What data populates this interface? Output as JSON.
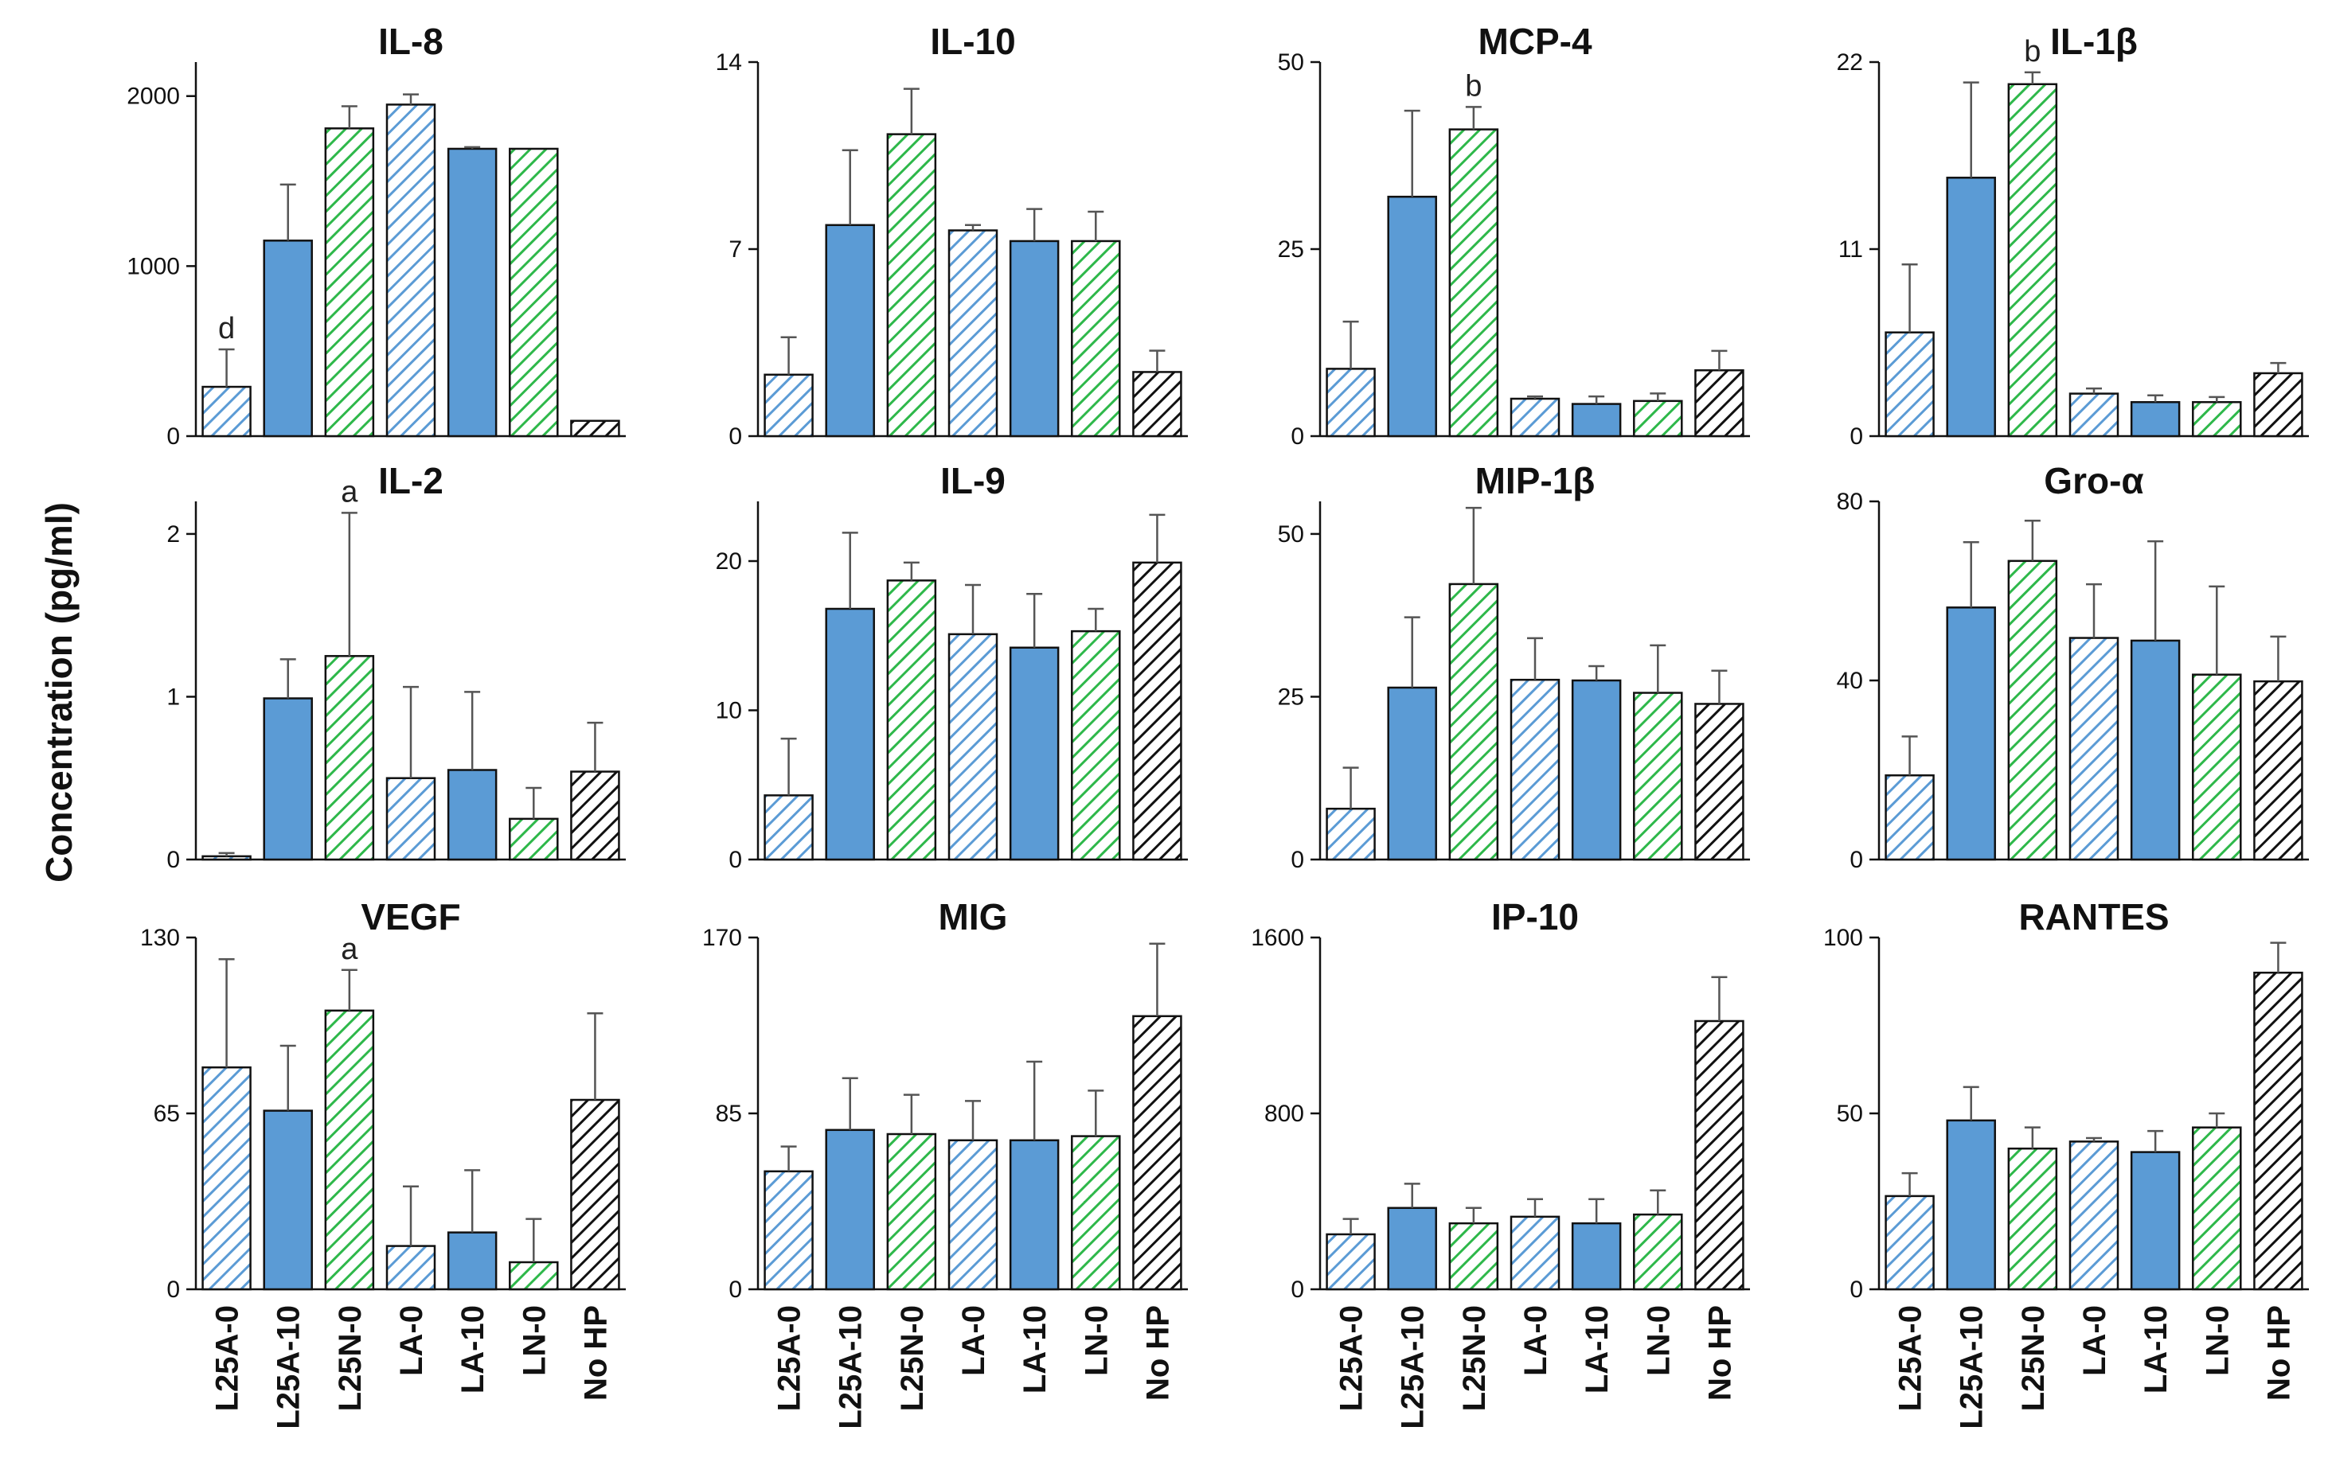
{
  "chart_data": {
    "type": "bar",
    "ylabel": "Concentration  (pg/ml)",
    "categories": [
      "L25A-0",
      "L25A-10",
      "L25N-0",
      "LA-0",
      "LA-10",
      "LN-0",
      "No HP"
    ],
    "category_styles": [
      "hatch-blue",
      "solid-blue",
      "hatch-green",
      "hatch-blue",
      "solid-blue",
      "hatch-green",
      "hatch-black"
    ],
    "colors": {
      "blue": "#5B9BD5",
      "green": "#2EB84A",
      "black": "#111111",
      "blue_hatch": "#5B9BD5"
    },
    "panels": [
      {
        "title": "IL-8",
        "ylim": [
          0,
          2200
        ],
        "ticks": [
          "0",
          "1000",
          "2000"
        ],
        "tick_values": [
          0,
          1000,
          2000
        ],
        "values": [
          290,
          1150,
          1810,
          1950,
          1690,
          1690,
          90
        ],
        "errors": [
          220,
          330,
          130,
          60,
          10,
          0,
          0
        ],
        "annotations": [
          {
            "index": 0,
            "label": "d"
          }
        ]
      },
      {
        "title": "IL-10",
        "ylim": [
          0,
          14
        ],
        "ticks": [
          "0",
          "7",
          "14"
        ],
        "tick_values": [
          0,
          7,
          14
        ],
        "values": [
          2.3,
          7.9,
          11.3,
          7.7,
          7.3,
          7.3,
          2.4
        ],
        "errors": [
          1.4,
          2.8,
          1.7,
          0.2,
          1.2,
          1.1,
          0.8
        ],
        "annotations": []
      },
      {
        "title": "MCP-4",
        "ylim": [
          0,
          50
        ],
        "ticks": [
          "0",
          "25",
          "50"
        ],
        "tick_values": [
          0,
          25,
          50
        ],
        "values": [
          9,
          32,
          41,
          5,
          4.3,
          4.7,
          8.8
        ],
        "errors": [
          6.3,
          11.5,
          3,
          0.3,
          1,
          1,
          2.6
        ],
        "annotations": [
          {
            "index": 2,
            "label": "b"
          }
        ]
      },
      {
        "title": "IL-1β",
        "ylim": [
          0,
          22
        ],
        "ticks": [
          "0",
          "11",
          "22"
        ],
        "tick_values": [
          0,
          11,
          22
        ],
        "values": [
          6.1,
          15.2,
          20.7,
          2.5,
          2,
          2,
          3.7
        ],
        "errors": [
          4,
          5.6,
          0.7,
          0.3,
          0.4,
          0.3,
          0.6
        ],
        "annotations": [
          {
            "index": 2,
            "label": "b"
          }
        ]
      },
      {
        "title": "IL-2",
        "ylim": [
          0,
          2.2
        ],
        "ticks": [
          "0",
          "1",
          "2"
        ],
        "tick_values": [
          0,
          1,
          2
        ],
        "values": [
          0.02,
          0.99,
          1.25,
          0.5,
          0.55,
          0.25,
          0.54
        ],
        "errors": [
          0.02,
          0.24,
          0.88,
          0.56,
          0.48,
          0.19,
          0.3
        ],
        "annotations": [
          {
            "index": 2,
            "label": "a"
          }
        ]
      },
      {
        "title": "IL-9",
        "ylim": [
          0,
          24
        ],
        "ticks": [
          "0",
          "10",
          "20"
        ],
        "tick_values": [
          0,
          10,
          20
        ],
        "values": [
          4.3,
          16.8,
          18.7,
          15.1,
          14.2,
          15.3,
          19.9
        ],
        "errors": [
          3.8,
          5.1,
          1.2,
          3.3,
          3.6,
          1.5,
          3.2
        ],
        "annotations": []
      },
      {
        "title": "MIP-1β",
        "ylim": [
          0,
          55
        ],
        "ticks": [
          "0",
          "25",
          "50"
        ],
        "tick_values": [
          0,
          25,
          50
        ],
        "values": [
          7.8,
          26.4,
          42.3,
          27.6,
          27.5,
          25.6,
          23.9
        ],
        "errors": [
          6.3,
          10.8,
          11.7,
          6.4,
          2.2,
          7.3,
          5.1
        ],
        "annotations": []
      },
      {
        "title": "Gro-α",
        "ylim": [
          0,
          80
        ],
        "ticks": [
          "0",
          "40",
          "80"
        ],
        "tick_values": [
          0,
          40,
          80
        ],
        "values": [
          18.8,
          56.3,
          66.7,
          49.5,
          48.9,
          41.3,
          39.8
        ],
        "errors": [
          8.7,
          14.6,
          9,
          12,
          22.2,
          19.7,
          10
        ],
        "annotations": []
      },
      {
        "title": "VEGF",
        "ylim": [
          0,
          130
        ],
        "ticks": [
          "0",
          "65",
          "130"
        ],
        "tick_values": [
          0,
          65,
          130
        ],
        "values": [
          82,
          66,
          103,
          16,
          21,
          10,
          70
        ],
        "errors": [
          40,
          24,
          15,
          22,
          23,
          16,
          32
        ],
        "annotations": [
          {
            "index": 2,
            "label": "a"
          }
        ]
      },
      {
        "title": "MIG",
        "ylim": [
          0,
          170
        ],
        "ticks": [
          "0",
          "85",
          "170"
        ],
        "tick_values": [
          0,
          85,
          170
        ],
        "values": [
          57,
          77,
          75,
          72,
          72,
          74,
          132
        ],
        "errors": [
          12,
          25,
          19,
          19,
          38,
          22,
          35
        ],
        "annotations": []
      },
      {
        "title": "IP-10",
        "ylim": [
          0,
          1600
        ],
        "ticks": [
          "0",
          "800",
          "1600"
        ],
        "tick_values": [
          0,
          800,
          1600
        ],
        "values": [
          250,
          370,
          300,
          330,
          300,
          340,
          1220
        ],
        "errors": [
          70,
          110,
          70,
          80,
          110,
          110,
          200
        ],
        "annotations": []
      },
      {
        "title": "RANTES",
        "ylim": [
          0,
          100
        ],
        "ticks": [
          "0",
          "50",
          "100"
        ],
        "tick_values": [
          0,
          50,
          100
        ],
        "values": [
          26.5,
          48,
          40,
          42,
          39,
          46,
          90
        ],
        "errors": [
          6.5,
          9.5,
          6,
          1,
          6,
          4,
          8.5
        ],
        "annotations": []
      }
    ]
  }
}
